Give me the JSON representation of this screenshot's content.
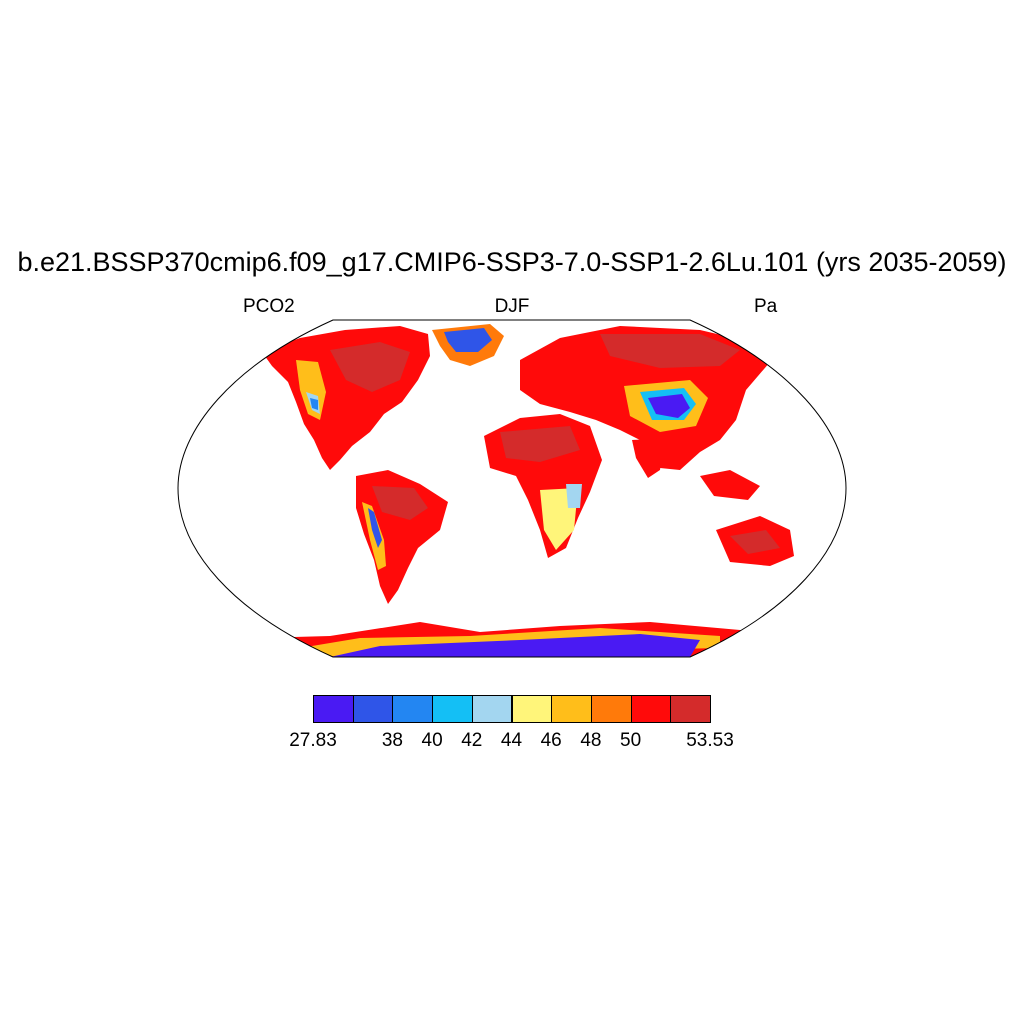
{
  "title": "b.e21.BSSP370cmip6.f09_g17.CMIP6-SSP3-7.0-SSP1-2.6Lu.101 (yrs 2035-2059)",
  "left_string": "PCO2",
  "center_string": "DJF",
  "right_string": "Pa",
  "colorbar": {
    "colors": [
      "#4a1af3",
      "#2f55e8",
      "#2386f2",
      "#14bff5",
      "#a3d6f0",
      "#fff57a",
      "#ffbe1a",
      "#ff7a0a",
      "#ff0a0a",
      "#d42b2b"
    ],
    "labels": [
      {
        "text": "27.83",
        "edge": 0
      },
      {
        "text": "38",
        "edge": 2
      },
      {
        "text": "40",
        "edge": 3
      },
      {
        "text": "42",
        "edge": 4
      },
      {
        "text": "44",
        "edge": 5
      },
      {
        "text": "46",
        "edge": 6
      },
      {
        "text": "48",
        "edge": 7
      },
      {
        "text": "50",
        "edge": 8
      },
      {
        "text": "53.53",
        "edge": 10
      }
    ]
  }
}
